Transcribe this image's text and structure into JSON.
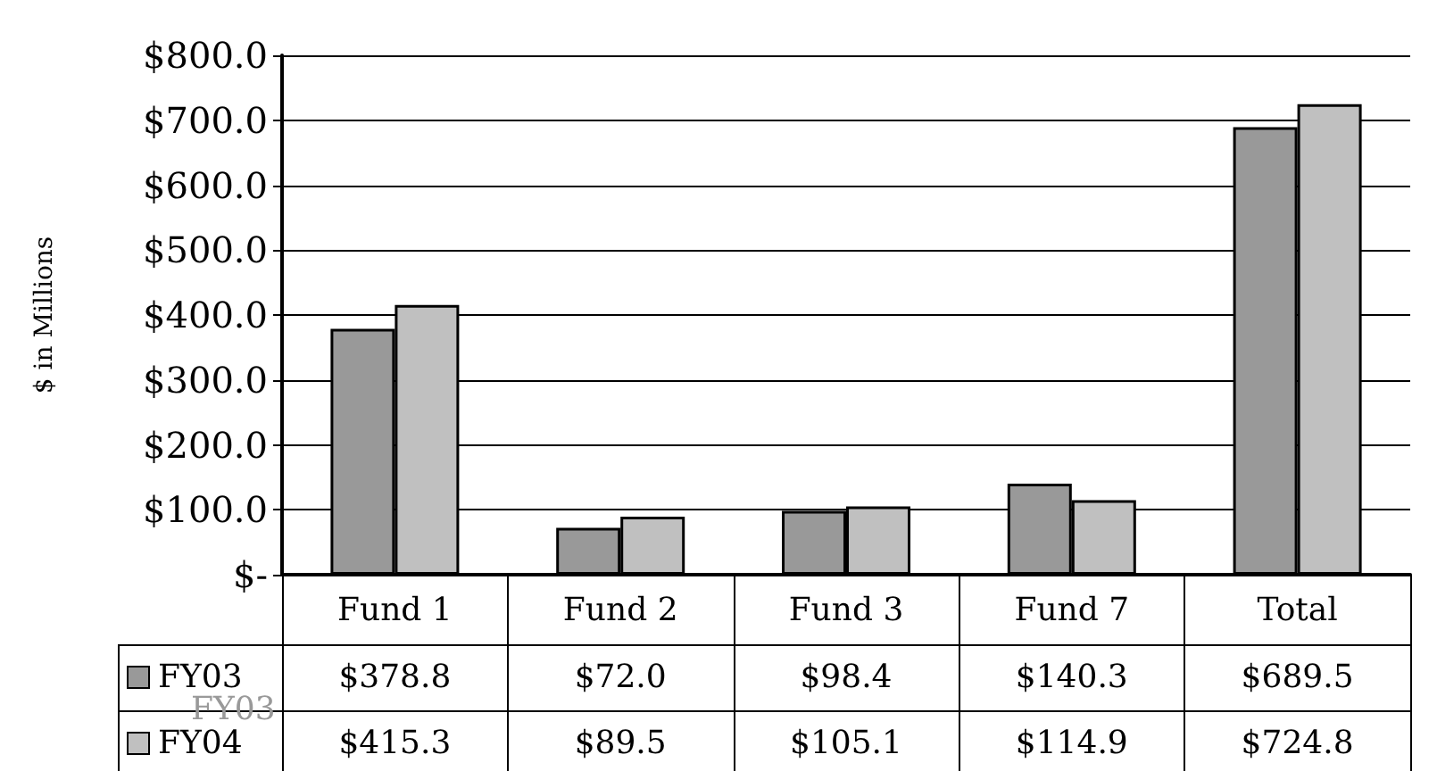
{
  "chart_data": {
    "type": "bar",
    "categories": [
      "Fund 1",
      "Fund 2",
      "Fund 3",
      "Fund 7",
      "Total"
    ],
    "series": [
      {
        "name": "FY03",
        "color": "#999999",
        "values": [
          378.8,
          72.0,
          98.4,
          140.3,
          689.5
        ],
        "value_labels": [
          "$378.8",
          "$72.0",
          "$98.4",
          "$140.3",
          "$689.5"
        ]
      },
      {
        "name": "FY04",
        "color": "#c0c0c0",
        "values": [
          415.3,
          89.5,
          105.1,
          114.9,
          724.8
        ],
        "value_labels": [
          "$415.3",
          "$89.5",
          "$105.1",
          "$114.9",
          "$724.8"
        ]
      }
    ],
    "ylabel": "$ in Millions",
    "ylim": [
      0,
      800
    ],
    "yticks": [
      {
        "value": 0,
        "label": "$-"
      },
      {
        "value": 100,
        "label": "$100.0"
      },
      {
        "value": 200,
        "label": "$200.0"
      },
      {
        "value": 300,
        "label": "$300.0"
      },
      {
        "value": 400,
        "label": "$400.0"
      },
      {
        "value": 500,
        "label": "$500.0"
      },
      {
        "value": 600,
        "label": "$600.0"
      },
      {
        "value": 700,
        "label": "$700.0"
      },
      {
        "value": 800,
        "label": "$800.0"
      }
    ],
    "grid": "y",
    "legend": "bottom left",
    "annotations": [
      "FY03"
    ]
  }
}
